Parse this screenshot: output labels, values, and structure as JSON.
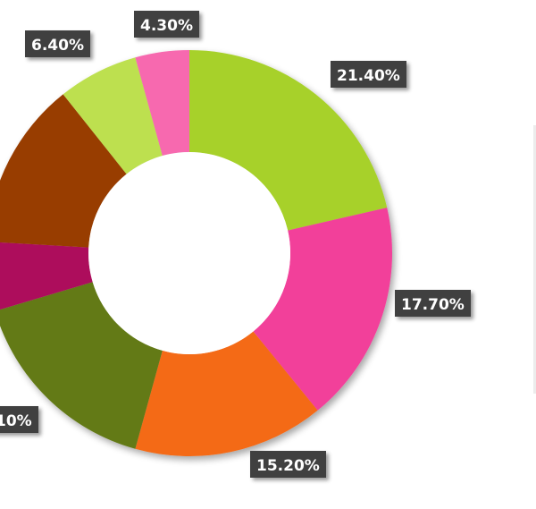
{
  "chart_data": {
    "type": "pie",
    "donut": true,
    "start_angle_deg": 0,
    "direction": "clockwise",
    "series": [
      {
        "label": "21.40%",
        "value": 21.4,
        "color": "#a7d129"
      },
      {
        "label": "17.70%",
        "value": 17.7,
        "color": "#f2419a"
      },
      {
        "label": "15.20%",
        "value": 15.2,
        "color": "#f46a18"
      },
      {
        "label": "",
        "value": 16.1,
        "color": "#647a19"
      },
      {
        "label": "",
        "value": 5.5,
        "color": "#ad0c5c"
      },
      {
        "label": "",
        "value": 13.4,
        "color": "#983c05"
      },
      {
        "label": "6.40%",
        "value": 6.4,
        "color": "#bde04f"
      },
      {
        "label": "4.30%",
        "value": 4.3,
        "color": "#f769af"
      }
    ],
    "partial_label": "10%"
  }
}
